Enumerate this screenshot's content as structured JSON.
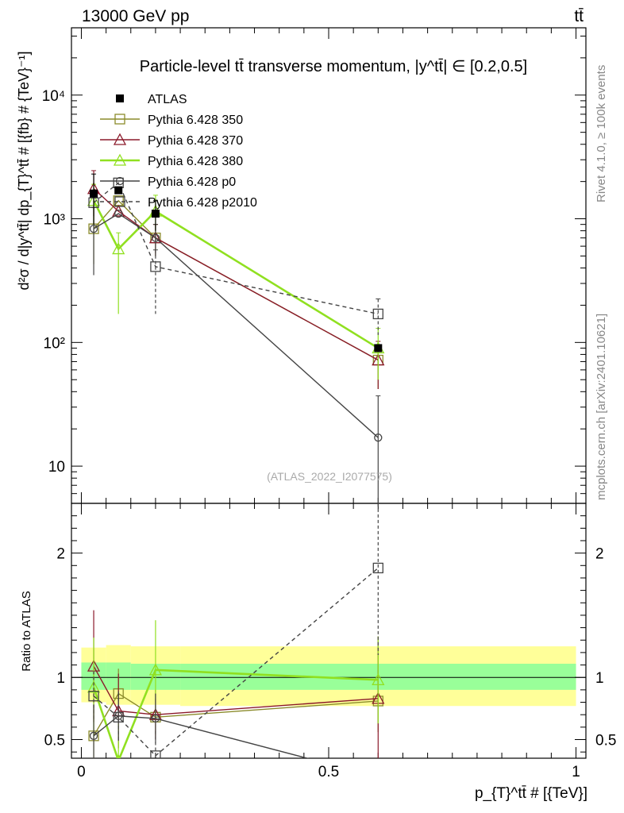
{
  "header": {
    "left": "13000 GeV pp",
    "right": "tt̄"
  },
  "side_labels": {
    "rivet": "Rivet 4.1.0, ≥ 100k events",
    "mcplots": "mcplots.cern.ch [arXiv:2401.10621]"
  },
  "colors": {
    "ATLAS": "#000000",
    "Pythia 6.428 350": "#8b8b2b",
    "Pythia 6.428 370": "#8b1a2b",
    "Pythia 6.428 380": "#90e020",
    "Pythia 6.428 p0": "#444444",
    "Pythia 6.428 p2010": "#444444",
    "band_inner": "#99ff99",
    "band_outer": "#ffff99"
  },
  "chart_data": [
    {
      "type": "line",
      "panel": "main",
      "title": "Particle-level tt̄ transverse momentum, |y^tt̄| ∈ [0.2,0.5]",
      "watermark": "(ATLAS_2022_I2077575)",
      "ylabel": "d²σ / d|y^tt̄| dp_{T}^tt̄ # [{fb} # {TeV}⁻¹]",
      "yscale": "log",
      "ylim": [
        5,
        35000
      ],
      "xlim": [
        -0.02,
        1.02
      ],
      "ytick_labels": [
        "10",
        "10²",
        "10³",
        "10⁴"
      ],
      "x": [
        0.025,
        0.075,
        0.15,
        0.6
      ],
      "series": [
        {
          "name": "ATLAS",
          "marker": "square-filled",
          "values": [
            1600,
            1700,
            1100,
            90
          ],
          "err_up": [
            700,
            0,
            300,
            0
          ],
          "err_down": [
            700,
            0,
            300,
            0
          ]
        },
        {
          "name": "Pythia 6.428 350",
          "marker": "square-open",
          "values": [
            830,
            1400,
            700,
            72
          ],
          "err_up": [
            400,
            0,
            200,
            30
          ],
          "err_down": [
            400,
            0,
            200,
            30
          ]
        },
        {
          "name": "Pythia 6.428 370",
          "marker": "triangle-open",
          "values": [
            1750,
            1150,
            700,
            72
          ],
          "err_up": [
            700,
            0,
            200,
            30
          ],
          "err_down": [
            700,
            0,
            200,
            30
          ]
        },
        {
          "name": "Pythia 6.428 380",
          "marker": "triangle-open",
          "values": [
            1400,
            570,
            1150,
            90
          ],
          "err_up": [
            500,
            200,
            400,
            40
          ],
          "err_down": [
            500,
            400,
            400,
            40
          ]
        },
        {
          "name": "Pythia 6.428 p0",
          "marker": "circle-open",
          "dash": false,
          "values": [
            830,
            1100,
            700,
            17
          ],
          "err_up": [
            400,
            0,
            200,
            20
          ],
          "err_down": [
            480,
            0,
            200,
            20
          ]
        },
        {
          "name": "Pythia 6.428 p2010",
          "marker": "square-open",
          "dash": true,
          "values": [
            1350,
            1950,
            410,
            170
          ],
          "err_up": [
            0,
            0,
            150,
            55
          ],
          "err_down": [
            0,
            0,
            240,
            55
          ]
        }
      ]
    },
    {
      "type": "line",
      "panel": "ratio",
      "ylabel": "Ratio to ATLAS",
      "xlabel": "p_{T}^tt̄ # [{TeV}]",
      "ylim": [
        0.35,
        2.4
      ],
      "xlim": [
        -0.02,
        1.02
      ],
      "xtick_labels": [
        "0",
        "0.5",
        "1"
      ],
      "ytick_labels": [
        "0.5",
        "1",
        "2"
      ],
      "bands": {
        "x_edges": [
          0.0,
          0.05,
          0.1,
          0.2,
          1.0
        ],
        "inner_lo": [
          0.9,
          0.9,
          0.9,
          0.9
        ],
        "inner_hi": [
          1.12,
          1.12,
          1.11,
          1.11
        ],
        "outer_lo": [
          0.8,
          0.78,
          0.78,
          0.77
        ],
        "outer_hi": [
          1.24,
          1.26,
          1.25,
          1.25
        ]
      },
      "x": [
        0.025,
        0.075,
        0.15,
        0.6
      ],
      "series": [
        {
          "name": "Pythia 6.428 350",
          "values": [
            0.53,
            0.87,
            0.68,
            0.81
          ],
          "err": [
            0.25,
            0.2,
            0.15,
            0.25
          ]
        },
        {
          "name": "Pythia 6.428 370",
          "values": [
            1.09,
            0.73,
            0.7,
            0.83
          ],
          "err": [
            0.45,
            0.3,
            0.2,
            0.5
          ]
        },
        {
          "name": "Pythia 6.428 380",
          "values": [
            0.92,
            0.33,
            1.06,
            0.98
          ],
          "err": [
            0.4,
            0.3,
            0.4,
            0.35
          ]
        },
        {
          "name": "Pythia 6.428 p0",
          "dash": false,
          "values": [
            0.53,
            0.69,
            0.67,
            0.2
          ],
          "err": [
            0.25,
            0.2,
            0.2,
            0.15
          ]
        },
        {
          "name": "Pythia 6.428 p2010",
          "dash": true,
          "values": [
            0.85,
            0.68,
            0.37,
            1.88
          ],
          "err": [
            0.2,
            0.2,
            0.2,
            0.7
          ]
        }
      ]
    }
  ]
}
